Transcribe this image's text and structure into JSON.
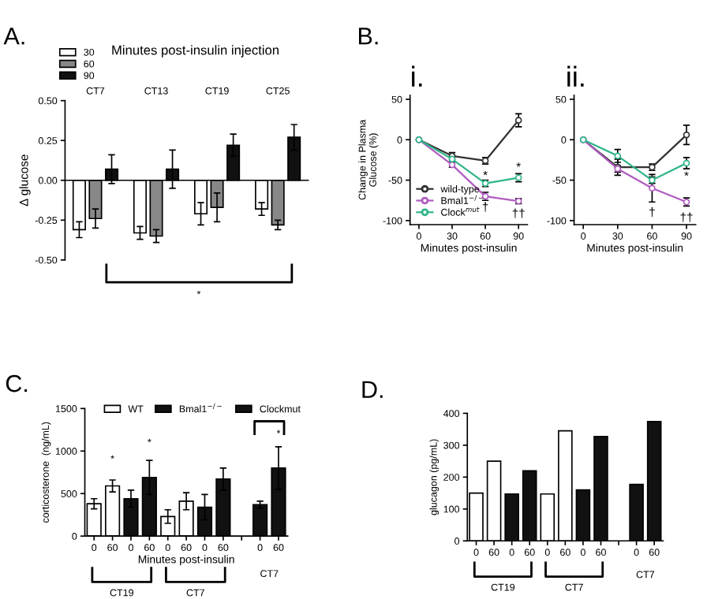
{
  "chart_data": [
    {
      "type": "bar",
      "title": "A.",
      "legend_title": "Minutes post-insulin injection",
      "categories": [
        "CT7",
        "CT13",
        "CT19",
        "CT25"
      ],
      "series": [
        {
          "name": "30",
          "color": "#ffffff",
          "values": [
            -0.31,
            -0.33,
            -0.21,
            -0.18
          ],
          "errors": [
            0.05,
            0.04,
            0.07,
            0.04
          ]
        },
        {
          "name": "60",
          "color": "#888888",
          "values": [
            -0.24,
            -0.35,
            -0.17,
            -0.28
          ],
          "errors": [
            0.06,
            0.04,
            0.09,
            0.03
          ]
        },
        {
          "name": "90",
          "color": "#111111",
          "values": [
            0.07,
            0.07,
            0.22,
            0.27
          ],
          "errors": [
            0.09,
            0.12,
            0.07,
            0.08
          ]
        }
      ],
      "ylabel": "Δ glucose",
      "ylim": [
        -0.5,
        0.5
      ],
      "yticks": [
        {
          "value": -0.5,
          "label": "-0.50"
        },
        {
          "value": -0.25,
          "label": "-0.25"
        },
        {
          "value": 0,
          "label": "0.00"
        },
        {
          "value": 0.25,
          "label": "0.25"
        },
        {
          "value": 0.5,
          "label": "0.50"
        }
      ],
      "legend": "top left",
      "annotations": [
        "*"
      ]
    },
    {
      "type": "line",
      "title": "B.",
      "subtitle": "i.",
      "x": [
        0,
        30,
        60,
        90
      ],
      "series": [
        {
          "name": "wild-type",
          "color": "#333333",
          "values": [
            0,
            -20,
            -26,
            24
          ],
          "errors": [
            null,
            4,
            4,
            8
          ]
        },
        {
          "name": "Bmal1$^{−/−}$",
          "color": "#b05cc0",
          "values": [
            0,
            -31,
            -70,
            -76
          ],
          "errors": [
            null,
            3,
            5,
            3
          ]
        },
        {
          "name": "Clock$^{mut}$",
          "color": "#2fb58a",
          "values": [
            0,
            -24,
            -54,
            -47
          ],
          "errors": [
            null,
            3,
            4,
            5
          ]
        }
      ],
      "xlabel": "Minutes post-insulin",
      "ylabel": "Change in Plasma\nGlucose (%)",
      "xlim": [
        -8,
        98
      ],
      "xticks": [
        0,
        30,
        60,
        90
      ],
      "ylim": [
        -105,
        55
      ],
      "yticks": [
        -100,
        -50,
        0,
        50
      ],
      "marker": "circle",
      "legend": "bottom left",
      "annotations": [
        "*",
        "*",
        "†",
        "††"
      ]
    },
    {
      "type": "line",
      "subtitle": "ii.",
      "x": [
        0,
        30,
        60,
        90
      ],
      "series": [
        {
          "color": "#333333",
          "values": [
            0,
            -34,
            -34,
            6
          ],
          "errors": [
            null,
            10,
            4,
            12
          ]
        },
        {
          "color": "#b05cc0",
          "values": [
            0,
            -36,
            -60,
            -77
          ],
          "errors": [
            null,
            4,
            17,
            5
          ]
        },
        {
          "color": "#2fb58a",
          "values": [
            0,
            -20,
            -50,
            -29
          ],
          "errors": [
            null,
            8,
            4,
            7
          ]
        }
      ],
      "xlabel": "Minutes post-insulin",
      "xlim": [
        -8,
        98
      ],
      "xticks": [
        0,
        30,
        60,
        90
      ],
      "ylim": [
        -105,
        55
      ],
      "yticks": [
        -100,
        -50,
        0,
        50
      ],
      "marker": "circle",
      "annotations": [
        "*",
        "†",
        "††"
      ]
    },
    {
      "type": "bar",
      "title": "C.",
      "stacked": true,
      "categories": [
        "0",
        "60",
        "0",
        "60",
        "0",
        "60",
        "0",
        "60",
        null,
        "0",
        "60"
      ],
      "series": [
        {
          "name": "WT",
          "color": "#ffffff",
          "values": [
            380,
            590,
            null,
            null,
            230,
            410,
            null,
            null,
            null,
            null,
            null
          ],
          "errors": [
            60,
            70,
            null,
            null,
            80,
            100,
            null,
            null,
            null,
            null,
            null
          ]
        },
        {
          "name": "Bmal1$^{−/−}$",
          "color": "#111111",
          "values": [
            null,
            null,
            440,
            690,
            null,
            null,
            340,
            670,
            null,
            null,
            null
          ],
          "errors": [
            null,
            null,
            100,
            200,
            null,
            null,
            150,
            130,
            null,
            null,
            null
          ]
        },
        {
          "name": "Clockmut",
          "color": "#111111",
          "values": [
            null,
            null,
            null,
            null,
            null,
            null,
            null,
            null,
            null,
            370,
            800
          ],
          "errors": [
            null,
            null,
            null,
            null,
            null,
            null,
            null,
            null,
            null,
            40,
            250
          ]
        }
      ],
      "xlabel": "Minutes post-insulin",
      "ylabel": "corticosterone  (ng/mL)",
      "ylim": [
        0,
        1500
      ],
      "yticks": [
        0,
        500,
        1000,
        1500
      ],
      "legend": "top",
      "annotations": [
        "*",
        "*",
        "*",
        "CT19",
        "CT7",
        "CT7"
      ]
    },
    {
      "type": "bar",
      "title": "D.",
      "categories": [
        "0",
        "60",
        "0",
        "60",
        "0",
        "60",
        "0",
        "60",
        null,
        "0",
        "60"
      ],
      "values": [
        150,
        250,
        147,
        220,
        147,
        345,
        160,
        327,
        null,
        177,
        374
      ],
      "colors": [
        "#ffffff",
        "#ffffff",
        "#111111",
        "#111111",
        "#ffffff",
        "#ffffff",
        "#111111",
        "#111111",
        null,
        "#111111",
        "#111111"
      ],
      "ylabel": "glucagon (pg/mL)",
      "ylim": [
        0,
        400
      ],
      "yticks": [
        0,
        100,
        200,
        300,
        400
      ],
      "annotations": [
        "CT19",
        "CT7",
        "CT7"
      ]
    }
  ]
}
